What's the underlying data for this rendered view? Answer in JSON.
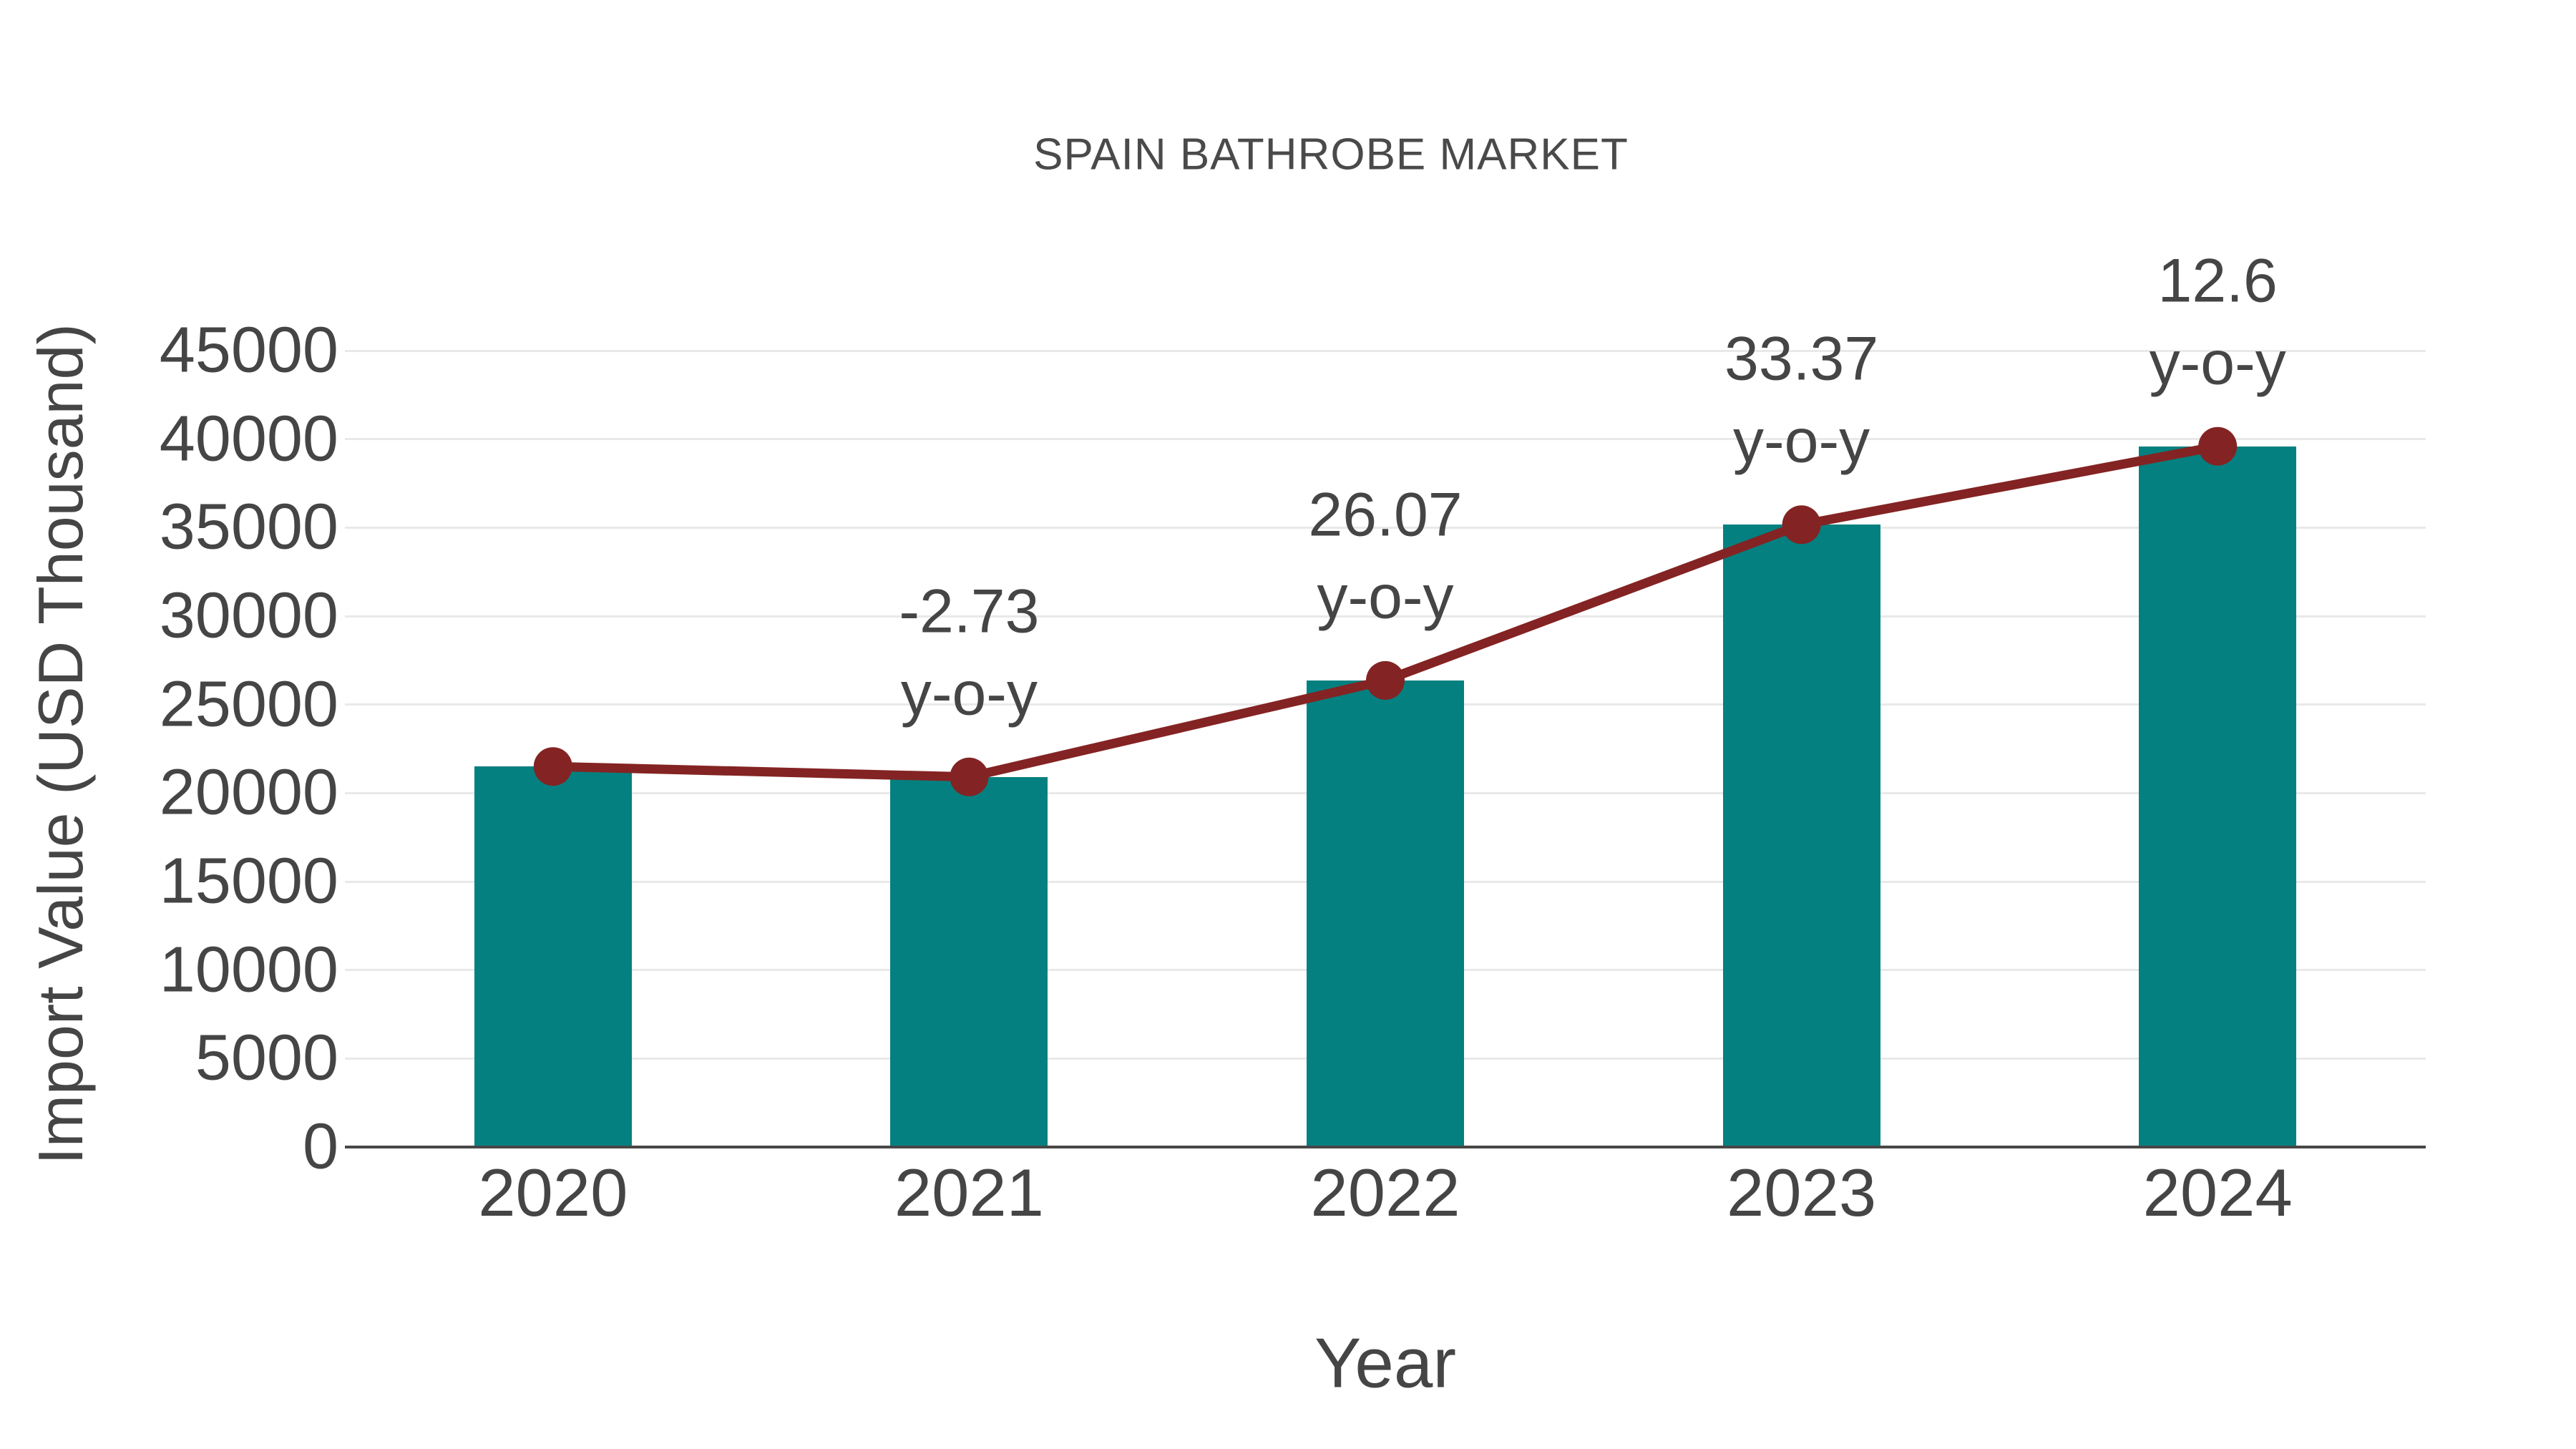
{
  "page": {
    "background": "#ffffff"
  },
  "colors": {
    "bar": "#058080",
    "line": "#842323",
    "marker": "#842323",
    "text": "#454545",
    "grid": "#e9e9e9",
    "axis": "#474747"
  },
  "chart_data": {
    "type": "bar",
    "subtype": "combo-bar-line",
    "title": "SPAIN BATHROBE MARKET",
    "xlabel": "Year",
    "ylabel": "Import Value (USD Thousand)",
    "categories": [
      "2020",
      "2021",
      "2022",
      "2023",
      "2024"
    ],
    "y_ticks": [
      0,
      5000,
      10000,
      15000,
      20000,
      25000,
      30000,
      35000,
      40000,
      45000
    ],
    "ylim": [
      0,
      45000
    ],
    "grid": "horizontal",
    "legend": "none",
    "series": [
      {
        "name": "Import Value (USD Thousand)",
        "type": "bar",
        "values": [
          21500,
          20913,
          26365,
          35163,
          39594
        ]
      },
      {
        "name": "y-o-y growth (%)",
        "type": "line",
        "values": [
          21500,
          20913,
          26365,
          35163,
          39594
        ],
        "point_labels": [
          null,
          "-2.73",
          "26.07",
          "33.37",
          "12.6"
        ],
        "point_label_suffix": "y-o-y"
      }
    ]
  }
}
